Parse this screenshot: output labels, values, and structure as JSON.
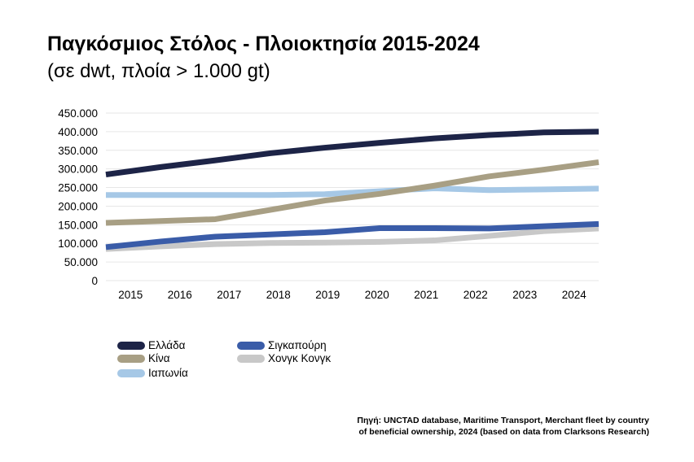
{
  "chart_data": {
    "type": "line",
    "title": "Παγκόσμιος Στόλος - Πλοιοκτησία 2015-2024",
    "subtitle": "(σε dwt, πλοία > 1.000 gt)",
    "xlabel": "",
    "ylabel": "",
    "x": [
      "2015",
      "2016",
      "2017",
      "2018",
      "2019",
      "2020",
      "2021",
      "2022",
      "2023",
      "2024"
    ],
    "ylim": [
      0,
      450000
    ],
    "yticks": [
      {
        "value": 0,
        "label": "0"
      },
      {
        "value": 50000,
        "label": "50.000"
      },
      {
        "value": 100000,
        "label": "100.000"
      },
      {
        "value": 150000,
        "label": "150.000"
      },
      {
        "value": 200000,
        "label": "200.000"
      },
      {
        "value": 250000,
        "label": "250.000"
      },
      {
        "value": 300000,
        "label": "300.000"
      },
      {
        "value": 350000,
        "label": "350.000"
      },
      {
        "value": 400000,
        "label": "400.000"
      },
      {
        "value": 450000,
        "label": "450.000"
      }
    ],
    "grid": true,
    "legend_position": "bottom-left",
    "series": [
      {
        "name": "Ελλάδα",
        "color": "#1d2447",
        "values": [
          285000,
          305000,
          323000,
          342000,
          357000,
          370000,
          382000,
          391000,
          398000,
          400000
        ]
      },
      {
        "name": "Κίνα",
        "color": "#a89f84",
        "values": [
          155000,
          160000,
          165000,
          190000,
          215000,
          233000,
          255000,
          280000,
          298000,
          318000
        ]
      },
      {
        "name": "Ιαπωνία",
        "color": "#a6c8e6",
        "values": [
          230000,
          230000,
          230000,
          230000,
          232000,
          240000,
          248000,
          243000,
          245000,
          247000
        ]
      },
      {
        "name": "Σιγκαπούρη",
        "color": "#3a5ca8",
        "values": [
          90000,
          105000,
          118000,
          124000,
          130000,
          141000,
          141000,
          140000,
          146000,
          152000
        ]
      },
      {
        "name": "Χονγκ Κονγκ",
        "color": "#c8c8c8",
        "values": [
          85000,
          92000,
          98000,
          101000,
          102000,
          104000,
          108000,
          120000,
          133000,
          140000
        ]
      }
    ],
    "source_line1": "Πηγή: UNCTAD database, Maritime Transport, Merchant fleet by country",
    "source_line2": "of beneficial ownership, 2024 (based on data from Clarksons Research)"
  }
}
